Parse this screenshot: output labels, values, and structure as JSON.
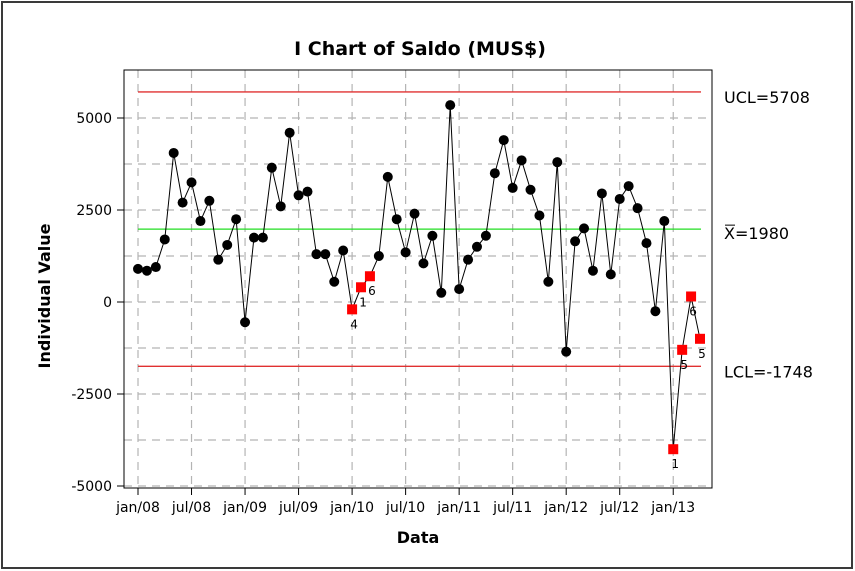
{
  "chart_data": {
    "type": "line",
    "title": "I Chart of Saldo (MUS$)",
    "xlabel": "Data",
    "ylabel": "Individual Value",
    "x_tick_labels": [
      "jan/08",
      "jul/08",
      "jan/09",
      "jul/09",
      "jan/10",
      "jul/10",
      "jan/11",
      "jul/11",
      "jan/12",
      "jul/12",
      "jan/13"
    ],
    "y_ticks": [
      {
        "value": -5000,
        "label": "-5000"
      },
      {
        "value": -2500,
        "label": "-2500"
      },
      {
        "value": 0,
        "label": "0"
      },
      {
        "value": 2500,
        "label": "2500"
      },
      {
        "value": 5000,
        "label": "5000"
      }
    ],
    "ylim": [
      -5100,
      6200
    ],
    "grid": true,
    "series": [
      {
        "values": [
          900,
          850,
          950,
          1700,
          4050,
          2700,
          3250,
          2200,
          2750,
          1150,
          1550,
          2250,
          -550,
          1750,
          1750,
          3650,
          2600,
          4600,
          2900,
          3000,
          1300,
          1300,
          550,
          1400,
          -200,
          400,
          700,
          1250,
          3400,
          2250,
          1350,
          2400,
          1050,
          1800,
          250,
          5350,
          350,
          1150,
          1500,
          1800,
          3500,
          4400,
          3100,
          3850,
          3050,
          2350,
          550,
          3800,
          -1350,
          1650,
          2000,
          850,
          2950,
          750,
          2800,
          3150,
          2550,
          1600,
          -250,
          2200,
          -4000,
          -1300,
          150,
          -1000
        ]
      }
    ],
    "control_lines": {
      "ucl": {
        "value": 5708,
        "label": "UCL=5708"
      },
      "center": {
        "value": 1980,
        "label_prefix": "X",
        "label_suffix": "=1980"
      },
      "lcl": {
        "value": -1748,
        "label": "LCL=-1748"
      }
    },
    "flagged_points": [
      {
        "index": 24,
        "label": "4"
      },
      {
        "index": 25,
        "label": "1"
      },
      {
        "index": 26,
        "label": "6"
      },
      {
        "index": 60,
        "label": "1"
      },
      {
        "index": 61,
        "label": "5"
      },
      {
        "index": 62,
        "label": "6"
      },
      {
        "index": 63,
        "label": "5"
      }
    ],
    "colors": {
      "data": "#000000",
      "flagged": "#ff0000",
      "limits": "#e03030",
      "center": "#22dd22",
      "grid": "#b4b4b4",
      "frame": "#000000",
      "figure_background": "#ffffff"
    }
  }
}
